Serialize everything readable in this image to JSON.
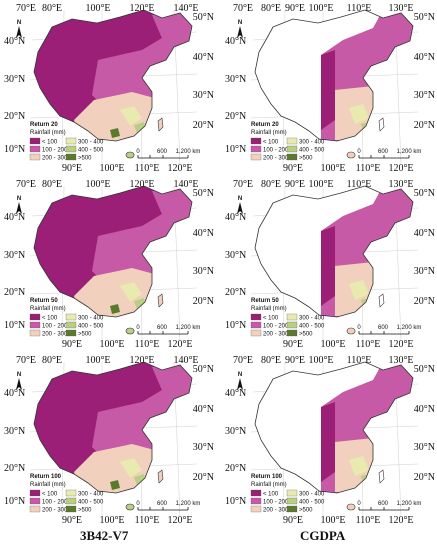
{
  "column_titles": [
    "3B42-V7",
    "CGDPA"
  ],
  "legend": {
    "title": "Rainfall (mm)",
    "classes": [
      {
        "label": "< 100",
        "color": "#9b1f77"
      },
      {
        "label": "100 - 200",
        "color": "#c65aa6"
      },
      {
        "label": "200 - 300",
        "color": "#f1d1be"
      },
      {
        "label": "300 - 400",
        "color": "#e8eab0"
      },
      {
        "label": "400 - 500",
        "color": "#b9cf83"
      },
      {
        "label": ">500",
        "color": "#5c7a2c"
      }
    ]
  },
  "north_label": "N",
  "scale": {
    "zero": "0",
    "mid": "600",
    "end": "1,200 km"
  },
  "lat_labels": [
    "40°N",
    "30°N",
    "20°N",
    "10°N"
  ],
  "right_lat_labels": [
    "50°N",
    "40°N",
    "30°N",
    "20°N"
  ],
  "top_lon_labels": [
    "70°E",
    "80°E",
    "90°E",
    "100°E",
    "110°E",
    "120°E",
    "130°E",
    "140°E"
  ],
  "bottom_lon_labels": [
    "90°E",
    "100°E",
    "110°E",
    "120°E"
  ],
  "panels": [
    {
      "id": "3b42-return20",
      "return_label": "Return 20",
      "variant": "left"
    },
    {
      "id": "cgdpa-return20",
      "return_label": "Return 20",
      "variant": "right"
    },
    {
      "id": "3b42-return50",
      "return_label": "Return 50",
      "variant": "left"
    },
    {
      "id": "cgdpa-return50",
      "return_label": "Return 50",
      "variant": "right"
    },
    {
      "id": "3b42-return100",
      "return_label": "Return 100",
      "variant": "left"
    },
    {
      "id": "cgdpa-return100",
      "return_label": "Return 100",
      "variant": "right"
    }
  ]
}
